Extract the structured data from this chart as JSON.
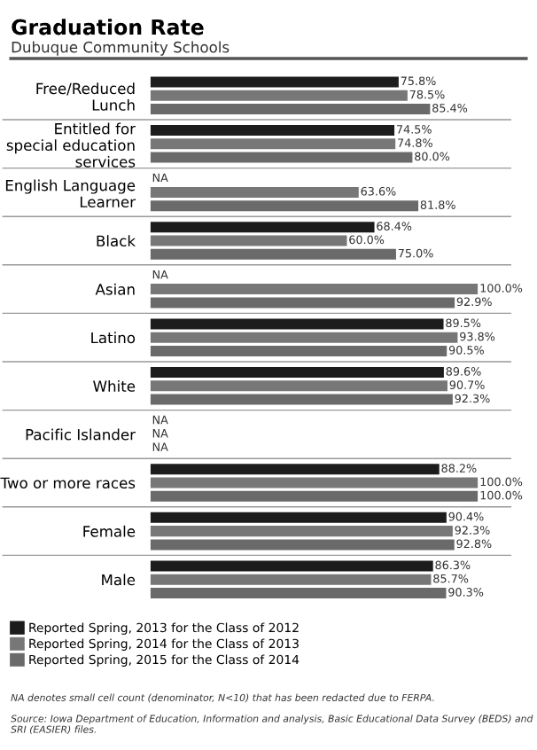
{
  "chart_data": {
    "type": "bar",
    "orientation": "horizontal",
    "title": "Graduation Rate",
    "subtitle": "Dubuque Community Schools",
    "categories": [
      "Free/Reduced Lunch",
      "Entitled for special education services",
      "English Language Learner",
      "Black",
      "Asian",
      "Latino",
      "White",
      "Pacific Islander",
      "Two or more races",
      "Female",
      "Male"
    ],
    "xlim": [
      0,
      100
    ],
    "tick_labels": "y",
    "grid": false,
    "legend": "bottom",
    "series": [
      {
        "name": "Reported Spring, 2013 for the Class of 2012",
        "color": "#1c1c1c",
        "values": [
          75.8,
          74.5,
          null,
          68.4,
          null,
          89.5,
          89.6,
          null,
          88.2,
          90.4,
          86.3
        ],
        "value_labels": [
          "75.8%",
          "74.5%",
          "NA",
          "68.4%",
          "NA",
          "89.5%",
          "89.6%",
          "NA",
          "88.2%",
          "90.4%",
          "86.3%"
        ]
      },
      {
        "name": "Reported Spring, 2014 for the Class of 2013",
        "color": "#777777",
        "values": [
          78.5,
          74.8,
          63.6,
          60.0,
          100.0,
          93.8,
          90.7,
          null,
          100.0,
          92.3,
          85.7
        ],
        "value_labels": [
          "78.5%",
          "74.8%",
          "63.6%",
          "60.0%",
          "100.0%",
          "93.8%",
          "90.7%",
          "NA",
          "100.0%",
          "92.3%",
          "85.7%"
        ]
      },
      {
        "name": "Reported Spring, 2015 for the Class of 2014",
        "color": "#6a6a6a",
        "values": [
          85.4,
          80.0,
          81.8,
          75.0,
          92.9,
          90.5,
          92.3,
          null,
          100.0,
          92.8,
          90.3
        ],
        "value_labels": [
          "85.4%",
          "80.0%",
          "81.8%",
          "75.0%",
          "92.9%",
          "90.5%",
          "92.3%",
          "NA",
          "100.0%",
          "92.8%",
          "90.3%"
        ]
      }
    ],
    "annotations": [
      "NA denotes small cell count (denominator, N<10) that has been redacted due to FERPA.",
      "Source: Iowa Department of Education, Information and analysis, Basic Educational Data Survey (BEDS) and SRI (EASIER) files."
    ]
  }
}
